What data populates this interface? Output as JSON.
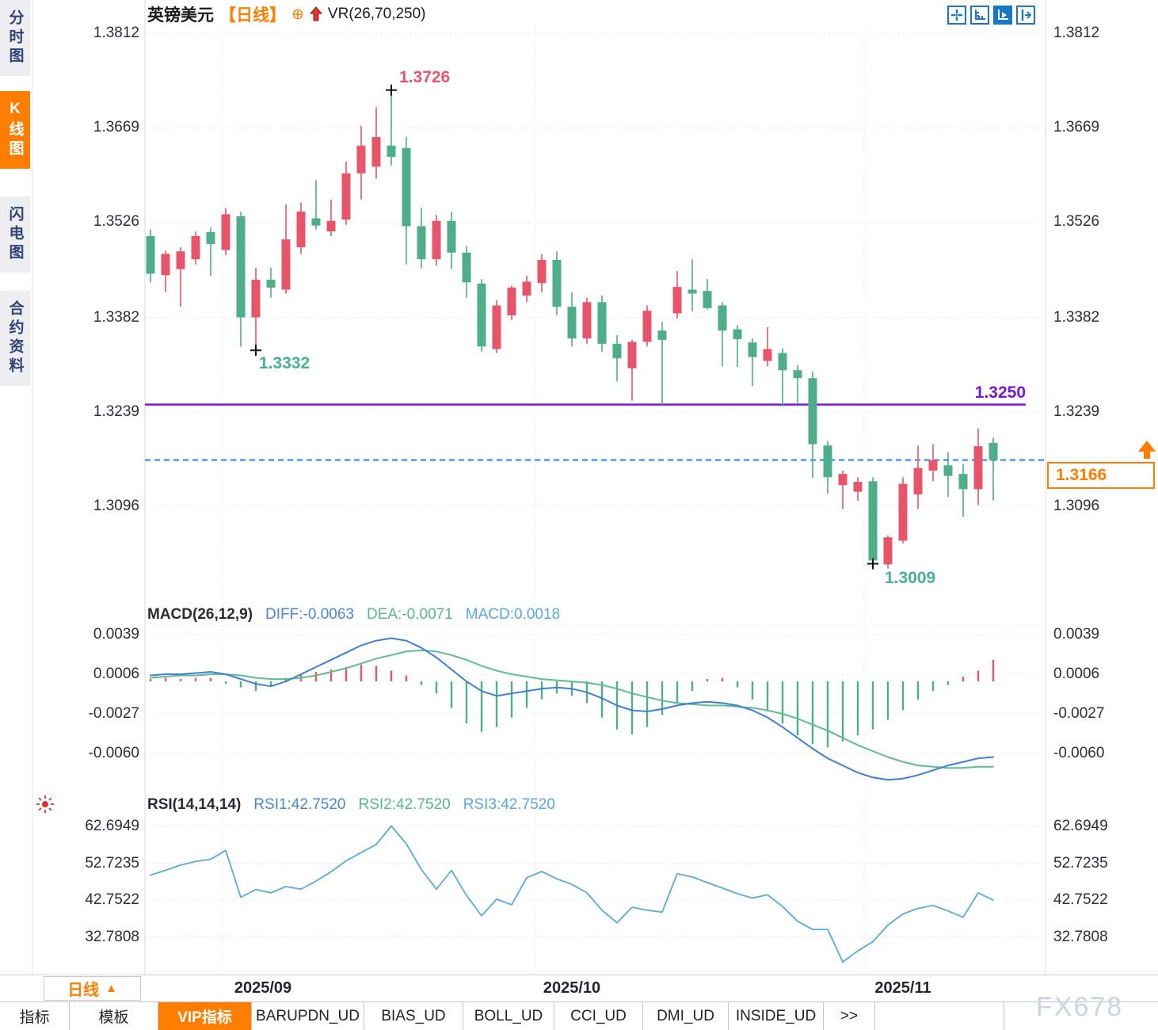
{
  "sidebar": {
    "tabs": [
      {
        "label": "分时图",
        "active": false
      },
      {
        "label": "K线图",
        "active": true
      },
      {
        "label": "闪电图",
        "active": false
      },
      {
        "label": "合约资料",
        "active": false
      }
    ]
  },
  "header": {
    "symbol": "英镑美元",
    "period_tag": "【日线】",
    "plus_icon": "⊕",
    "indicator": "VR(26,70,250)"
  },
  "toolbar": {
    "icons": [
      "crosshair-icon",
      "axis-range-icon",
      "axis-play-icon",
      "export-icon"
    ]
  },
  "main_chart": {
    "y_labels": [
      "1.3812",
      "1.3669",
      "1.3526",
      "1.3382",
      "1.3239",
      "1.3096"
    ]
  },
  "annotations": {
    "high": "1.3726",
    "low_sep": "1.3332",
    "low_nov": "1.3009",
    "support": "1.3250",
    "current": "1.3166"
  },
  "macd": {
    "title": "MACD(26,12,9)",
    "diff": "DIFF:-0.0063",
    "dea": "DEA:-0.0071",
    "macd": "MACD:0.0018",
    "y_labels": [
      "0.0039",
      "0.0006",
      "-0.0027",
      "-0.0060"
    ]
  },
  "rsi": {
    "title": "RSI(14,14,14)",
    "r1": "RSI1:42.7520",
    "r2": "RSI2:42.7520",
    "r3": "RSI3:42.7520",
    "y_labels": [
      "62.6949",
      "52.7235",
      "42.7522",
      "32.7808"
    ]
  },
  "x_axis": {
    "labels": [
      "2025/09",
      "2025/10",
      "2025/11"
    ]
  },
  "period_button": {
    "label": "日线",
    "arrow": "▲"
  },
  "bottom_tabs": [
    {
      "label": "指标",
      "active": false
    },
    {
      "label": "模板",
      "active": false
    },
    {
      "label": "VIP指标",
      "active": true
    },
    {
      "label": "BARUPDN_UD",
      "active": false
    },
    {
      "label": "BIAS_UD",
      "active": false
    },
    {
      "label": "BOLL_UD",
      "active": false
    },
    {
      "label": "CCI_UD",
      "active": false
    },
    {
      "label": "DMI_UD",
      "active": false
    },
    {
      "label": "INSIDE_UD",
      "active": false
    },
    {
      "label": ">>",
      "active": false
    }
  ],
  "watermark": "FX678",
  "colors": {
    "up": "#e8556b",
    "down": "#4eae8a",
    "diff_line": "#3f7fd6",
    "dea_line": "#5fbe8e",
    "rsi_line": "#58abdc",
    "support_line": "#7a16d8",
    "current_line": "#1d86f0",
    "accent_orange": "#ff7d00",
    "grid": "#dedede"
  },
  "chart_data": {
    "type": "candlestick",
    "title": "英镑美元 日线 (GBP/USD daily)",
    "y_range_main": [
      1.3096,
      1.3812
    ],
    "marked_high": 1.3726,
    "marked_low": 1.3009,
    "support_level": 1.325,
    "current_price": 1.3166,
    "month_labels": [
      "2025/09",
      "2025/10",
      "2025/11"
    ],
    "candles_ohlc": [
      [
        1.3505,
        1.3515,
        1.3435,
        1.3448
      ],
      [
        1.3446,
        1.3483,
        1.342,
        1.3478
      ],
      [
        1.3455,
        1.3488,
        1.3398,
        1.3482
      ],
      [
        1.347,
        1.3512,
        1.3462,
        1.3505
      ],
      [
        1.3511,
        1.3518,
        1.3445,
        1.3493
      ],
      [
        1.3484,
        1.3547,
        1.3476,
        1.3538
      ],
      [
        1.3535,
        1.3542,
        1.3338,
        1.3382
      ],
      [
        1.3382,
        1.3457,
        1.3332,
        1.3439
      ],
      [
        1.3439,
        1.3457,
        1.3412,
        1.3427
      ],
      [
        1.3424,
        1.3553,
        1.3418,
        1.35
      ],
      [
        1.3488,
        1.3556,
        1.3478,
        1.3542
      ],
      [
        1.3532,
        1.359,
        1.3515,
        1.3521
      ],
      [
        1.3512,
        1.356,
        1.3505,
        1.3528
      ],
      [
        1.353,
        1.3618,
        1.3522,
        1.36
      ],
      [
        1.36,
        1.3672,
        1.356,
        1.3642
      ],
      [
        1.361,
        1.37,
        1.3592,
        1.3655
      ],
      [
        1.3642,
        1.3726,
        1.3612,
        1.3625
      ],
      [
        1.3638,
        1.3655,
        1.3462,
        1.352
      ],
      [
        1.352,
        1.3548,
        1.3456,
        1.347
      ],
      [
        1.347,
        1.3537,
        1.346,
        1.3528
      ],
      [
        1.3528,
        1.3542,
        1.3455,
        1.348
      ],
      [
        1.348,
        1.349,
        1.3412,
        1.3435
      ],
      [
        1.3433,
        1.344,
        1.333,
        1.3338
      ],
      [
        1.3334,
        1.3408,
        1.3328,
        1.34
      ],
      [
        1.3385,
        1.343,
        1.3378,
        1.3427
      ],
      [
        1.3415,
        1.3445,
        1.3405,
        1.3436
      ],
      [
        1.3434,
        1.3478,
        1.342,
        1.3469
      ],
      [
        1.3469,
        1.3482,
        1.3385,
        1.3398
      ],
      [
        1.3398,
        1.342,
        1.3338,
        1.335
      ],
      [
        1.335,
        1.3412,
        1.3342,
        1.3405
      ],
      [
        1.3405,
        1.3415,
        1.333,
        1.3342
      ],
      [
        1.3342,
        1.3355,
        1.3285,
        1.332
      ],
      [
        1.3305,
        1.3348,
        1.3256,
        1.3345
      ],
      [
        1.3345,
        1.34,
        1.3338,
        1.3392
      ],
      [
        1.3362,
        1.3375,
        1.325,
        1.3348
      ],
      [
        1.3388,
        1.3452,
        1.338,
        1.3428
      ],
      [
        1.3424,
        1.347,
        1.3391,
        1.3418
      ],
      [
        1.3422,
        1.344,
        1.3394,
        1.3396
      ],
      [
        1.34,
        1.3405,
        1.3308,
        1.3362
      ],
      [
        1.3364,
        1.337,
        1.3307,
        1.3349
      ],
      [
        1.3344,
        1.335,
        1.3278,
        1.3322
      ],
      [
        1.3316,
        1.3367,
        1.3308,
        1.3334
      ],
      [
        1.3328,
        1.3335,
        1.3247,
        1.3302
      ],
      [
        1.3302,
        1.331,
        1.3252,
        1.329
      ],
      [
        1.329,
        1.33,
        1.3139,
        1.319
      ],
      [
        1.3188,
        1.3195,
        1.3115,
        1.314
      ],
      [
        1.3128,
        1.315,
        1.3092,
        1.3145
      ],
      [
        1.3118,
        1.314,
        1.3104,
        1.3133
      ],
      [
        1.3134,
        1.314,
        1.3009,
        1.3014
      ],
      [
        1.3008,
        1.3052,
        1.3002,
        1.3049
      ],
      [
        1.3044,
        1.314,
        1.304,
        1.313
      ],
      [
        1.3114,
        1.3188,
        1.3092,
        1.3154
      ],
      [
        1.315,
        1.319,
        1.3134,
        1.3166
      ],
      [
        1.3158,
        1.3178,
        1.311,
        1.3142
      ],
      [
        1.3145,
        1.316,
        1.308,
        1.3122
      ],
      [
        1.3122,
        1.3214,
        1.3098,
        1.3187
      ],
      [
        1.3192,
        1.32,
        1.3105,
        1.3166
      ]
    ],
    "macd": {
      "params": [
        26,
        12,
        9
      ],
      "diff_last": -0.0063,
      "dea_last": -0.0071,
      "macd_last": 0.0018,
      "y_ticks": [
        0.0039,
        0.0006,
        -0.0027,
        -0.006
      ],
      "diff_e4": [
        5,
        6,
        6,
        7,
        8,
        6,
        2,
        -2,
        -4,
        0,
        6,
        12,
        18,
        24,
        30,
        34,
        36,
        34,
        28,
        20,
        10,
        0,
        -8,
        -12,
        -10,
        -8,
        -6,
        -5,
        -6,
        -9,
        -14,
        -20,
        -24,
        -25,
        -23,
        -20,
        -18,
        -17,
        -18,
        -20,
        -24,
        -30,
        -38,
        -47,
        -56,
        -64,
        -70,
        -76,
        -80,
        -82,
        -81,
        -78,
        -74,
        -70,
        -67,
        -64,
        -63
      ],
      "dea_e4": [
        3,
        4,
        5,
        5,
        6,
        6,
        5,
        3,
        2,
        2,
        3,
        5,
        8,
        11,
        15,
        19,
        22,
        25,
        26,
        25,
        22,
        18,
        13,
        9,
        6,
        4,
        2,
        1,
        0,
        -1,
        -3,
        -6,
        -10,
        -13,
        -16,
        -18,
        -19,
        -20,
        -20,
        -21,
        -22,
        -24,
        -27,
        -31,
        -36,
        -41,
        -47,
        -53,
        -58,
        -63,
        -67,
        -70,
        -71,
        -72,
        -72,
        -71,
        -71
      ],
      "hist_e4": [
        2,
        3,
        2,
        3,
        3,
        -2,
        -5,
        -8,
        -4,
        3,
        6,
        8,
        10,
        12,
        14,
        13,
        9,
        5,
        -3,
        -10,
        -22,
        -35,
        -42,
        -38,
        -30,
        -22,
        -15,
        -10,
        -12,
        -18,
        -30,
        -40,
        -44,
        -38,
        -28,
        -18,
        -8,
        2,
        3,
        -5,
        -15,
        -25,
        -35,
        -45,
        -52,
        -55,
        -50,
        -45,
        -40,
        -32,
        -24,
        -15,
        -8,
        -3,
        4,
        9,
        18
      ]
    },
    "rsi": {
      "params": [
        14,
        14,
        14
      ],
      "last": 42.752,
      "y_ticks": [
        62.6949,
        52.7235,
        42.7522,
        32.7808
      ],
      "values": [
        49.5,
        50.8,
        52.2,
        53.2,
        53.8,
        56.2,
        43.5,
        45.6,
        44.7,
        46.4,
        45.7,
        47.9,
        50.4,
        53.4,
        55.6,
        57.8,
        62.8,
        58.0,
        51.0,
        45.7,
        50.8,
        44.0,
        38.5,
        43.0,
        41.5,
        48.8,
        50.5,
        48.5,
        47.0,
        44.7,
        40.0,
        36.6,
        40.8,
        40.0,
        39.5,
        49.9,
        49.0,
        47.5,
        46.0,
        44.5,
        43.3,
        44.2,
        41.0,
        37.0,
        34.8,
        34.8,
        26.0,
        29.0,
        31.5,
        36.0,
        39.0,
        40.5,
        41.3,
        39.8,
        38.1,
        44.7,
        42.75
      ]
    }
  }
}
